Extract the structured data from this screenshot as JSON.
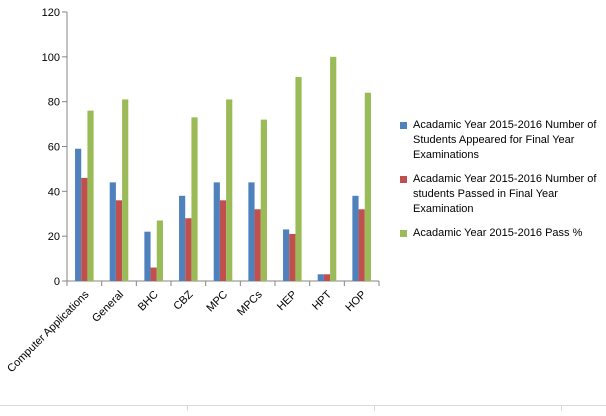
{
  "chart_data": {
    "type": "bar",
    "categories": [
      "Computer Applications",
      "General",
      "BHC",
      "CBZ",
      "MPC",
      "MPCs",
      "HEP",
      "HPT",
      "HOP"
    ],
    "series": [
      {
        "name": "Acadamic Year 2015-2016 Number of Students Appeared for Final Year Examinations",
        "values": [
          59,
          44,
          22,
          38,
          44,
          44,
          23,
          3,
          38
        ],
        "color": "#4f81bd"
      },
      {
        "name": "Acadamic Year 2015-2016 Number of students Passed in Final Year Examination",
        "values": [
          46,
          36,
          6,
          28,
          36,
          32,
          21,
          3,
          32
        ],
        "color": "#c0504d"
      },
      {
        "name": "Acadamic Year 2015-2016 Pass %",
        "values": [
          76,
          81,
          27,
          73,
          81,
          72,
          91,
          100,
          84
        ],
        "color": "#9bbb59"
      }
    ],
    "ylim": [
      0,
      120
    ],
    "yticks": [
      "0",
      "20",
      "40",
      "60",
      "80",
      "100",
      "120"
    ],
    "grid": false,
    "legend_position": "right"
  }
}
